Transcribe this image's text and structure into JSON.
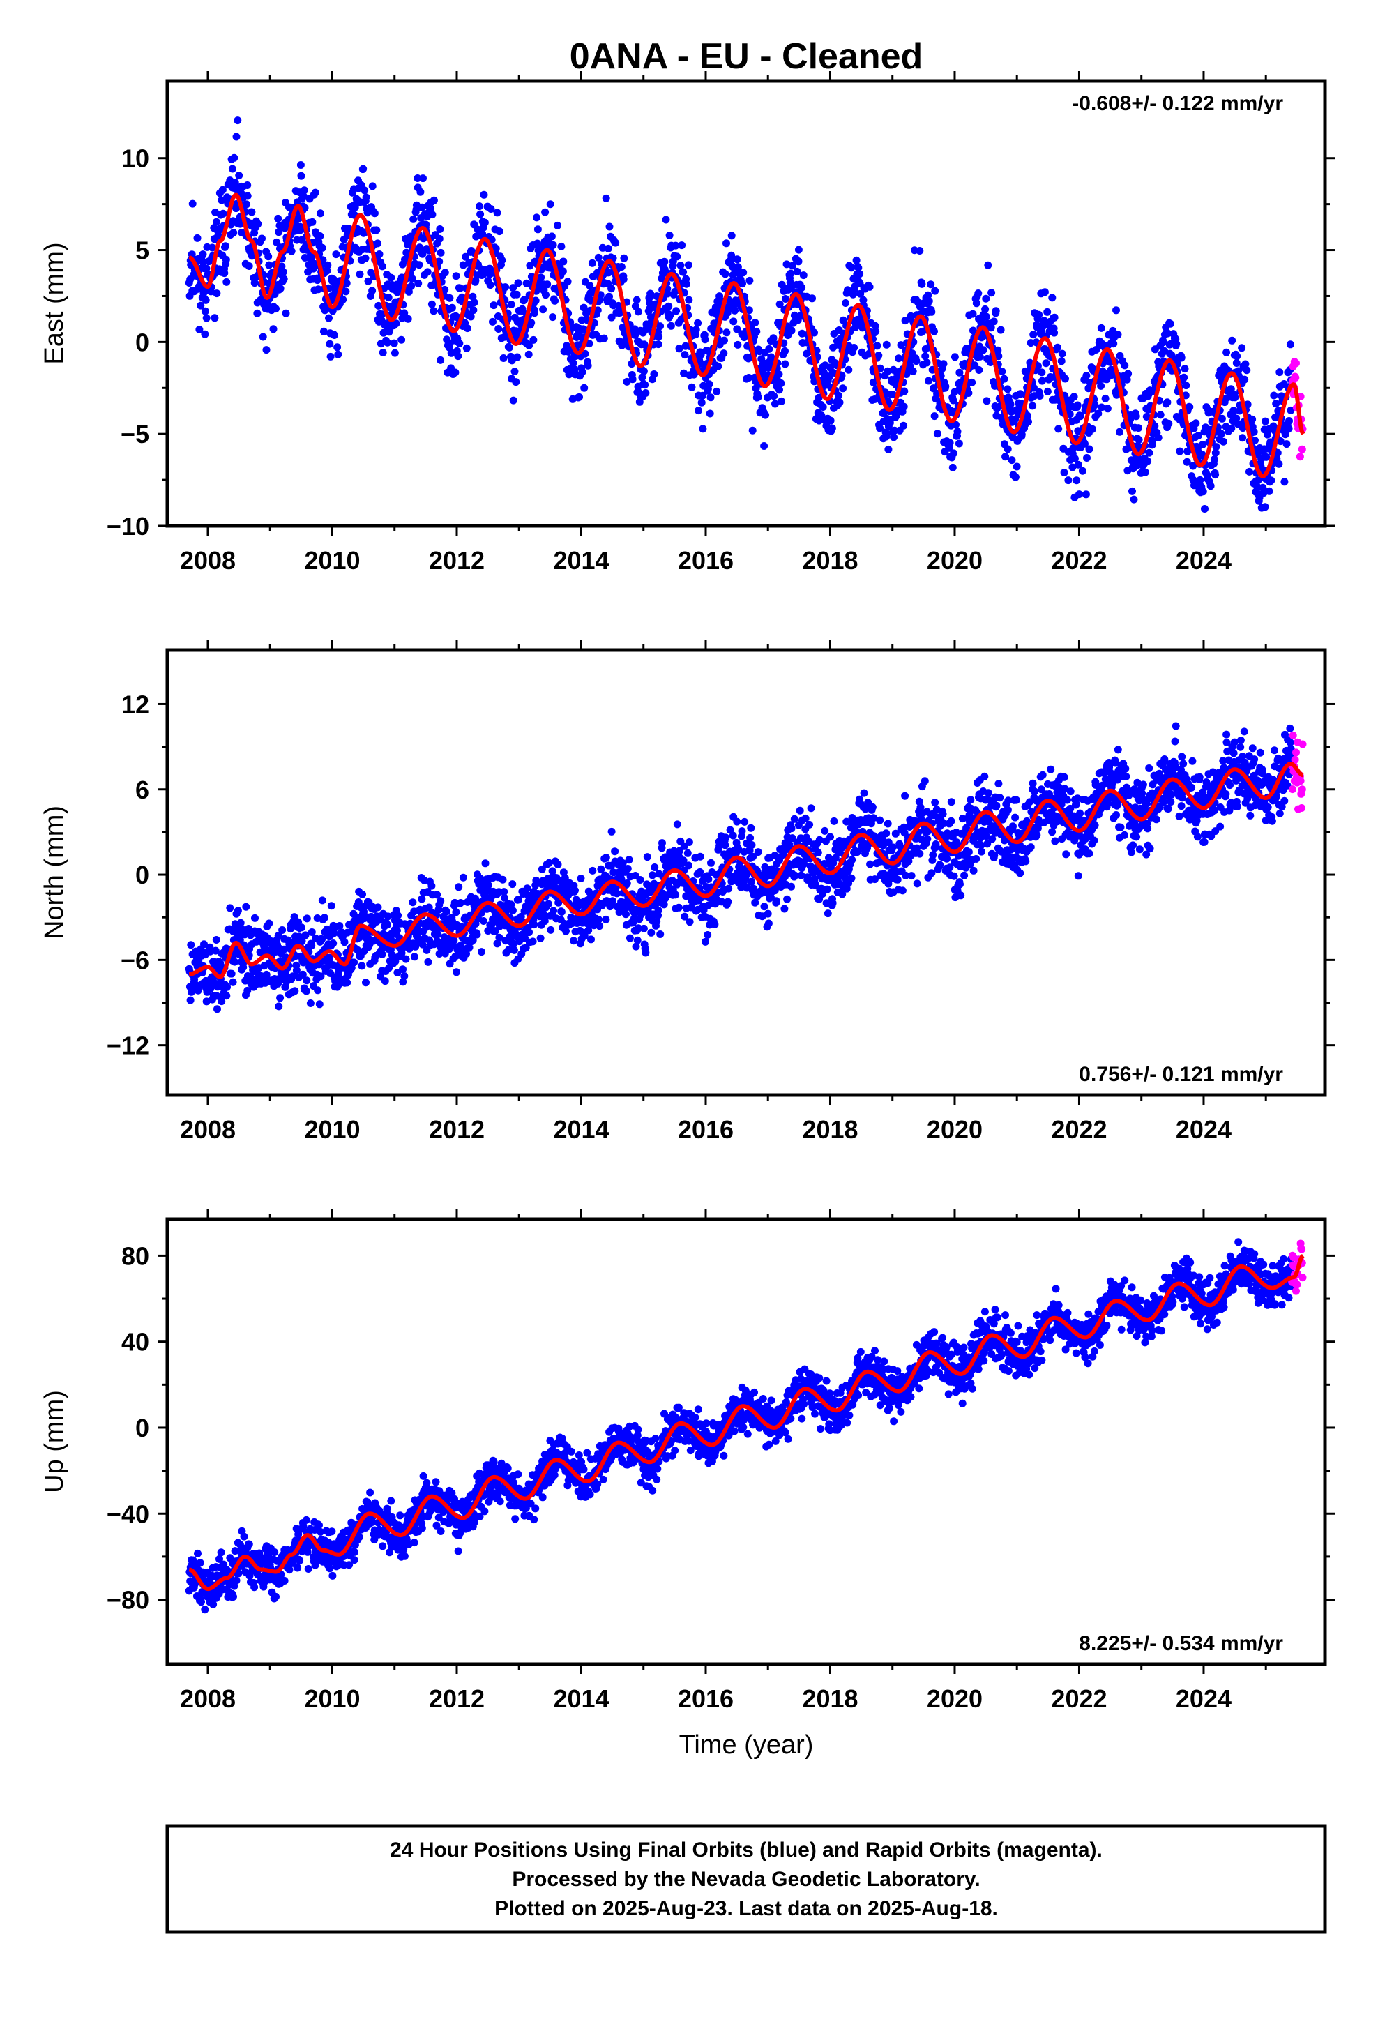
{
  "title": "0ANA  - EU - Cleaned",
  "colors": {
    "final_orbits": "#0000ff",
    "rapid_orbits": "#ff00ff",
    "model_fit": "#ff0000",
    "frame": "#000000"
  },
  "chart_data": [
    {
      "type": "scatter",
      "component": "East",
      "ylabel": "East (mm)",
      "rate_text": "-0.608+/- 0.122 mm/yr",
      "rate_mm_per_yr": -0.608,
      "rate_sigma_mm_per_yr": 0.122,
      "xlim": [
        2007.35,
        2025.95
      ],
      "ylim": [
        -10,
        14.2
      ],
      "yticks": [
        10,
        5,
        0,
        -5,
        -10
      ],
      "ytick_labels": [
        "10",
        "5",
        "0",
        "−5",
        "−10"
      ],
      "xticks": [
        2008,
        2010,
        2012,
        2014,
        2016,
        2018,
        2020,
        2022,
        2024
      ],
      "grid": false,
      "model": {
        "description_shown": "red fitted trend + annual cycle",
        "samples_x": [
          2007.7,
          2008.0,
          2008.2,
          2008.45,
          2008.7,
          2008.95,
          2009.2,
          2009.45,
          2009.7,
          2010.0,
          2010.45,
          2010.95,
          2011.45,
          2011.95,
          2012.45,
          2012.95,
          2013.45,
          2013.95,
          2014.45,
          2014.95,
          2015.45,
          2015.95,
          2016.45,
          2016.95,
          2017.45,
          2017.95,
          2018.45,
          2018.95,
          2019.45,
          2019.95,
          2020.45,
          2020.95,
          2021.45,
          2021.95,
          2022.45,
          2022.95,
          2023.45,
          2023.95,
          2024.45,
          2024.95,
          2025.45,
          2025.6
        ],
        "samples_y": [
          4.6,
          3.0,
          5.5,
          8.0,
          5.5,
          2.4,
          4.9,
          7.4,
          4.9,
          1.9,
          6.9,
          1.2,
          6.2,
          0.6,
          5.6,
          -0.1,
          5.0,
          -0.6,
          4.4,
          -1.3,
          3.7,
          -1.8,
          3.2,
          -2.4,
          2.6,
          -3.1,
          2.0,
          -3.7,
          1.4,
          -4.3,
          0.8,
          -4.9,
          0.2,
          -5.5,
          -0.4,
          -6.1,
          -1.0,
          -6.7,
          -1.7,
          -7.3,
          -2.3,
          -5.0
        ]
      },
      "scatter_seed": 11,
      "scatter_noise_mm": 1.9,
      "daily_positions_shown": "dense blue daily solutions (~6000 days) scattered about the red model; magenta rapid-orbit points at the end"
    },
    {
      "type": "scatter",
      "component": "North",
      "ylabel": "North (mm)",
      "rate_text": "0.756+/- 0.121 mm/yr",
      "rate_mm_per_yr": 0.756,
      "rate_sigma_mm_per_yr": 0.121,
      "xlim": [
        2007.35,
        2025.95
      ],
      "ylim": [
        -15.5,
        15.8
      ],
      "yticks": [
        12,
        6,
        0,
        -6,
        -12
      ],
      "ytick_labels": [
        "12",
        "6",
        "0",
        "−6",
        "−12"
      ],
      "xticks": [
        2008,
        2010,
        2012,
        2014,
        2016,
        2018,
        2020,
        2022,
        2024
      ],
      "grid": false,
      "model": {
        "description_shown": "red fitted trend + annual cycle",
        "samples_x": [
          2007.7,
          2008.0,
          2008.2,
          2008.45,
          2008.7,
          2008.95,
          2009.2,
          2009.45,
          2009.7,
          2009.95,
          2010.2,
          2010.45,
          2011.0,
          2011.5,
          2012.0,
          2012.5,
          2013.0,
          2013.5,
          2014.0,
          2014.5,
          2015.0,
          2015.5,
          2016.0,
          2016.5,
          2017.0,
          2017.5,
          2018.0,
          2018.5,
          2019.0,
          2019.5,
          2020.0,
          2020.5,
          2021.0,
          2021.5,
          2022.0,
          2022.5,
          2023.0,
          2023.5,
          2024.0,
          2024.5,
          2025.0,
          2025.4,
          2025.6
        ],
        "samples_y": [
          -7.0,
          -6.5,
          -7.2,
          -4.8,
          -6.3,
          -5.7,
          -6.6,
          -5.0,
          -6.1,
          -5.4,
          -6.3,
          -3.6,
          -5.0,
          -2.8,
          -4.3,
          -2.0,
          -3.6,
          -1.2,
          -2.8,
          -0.5,
          -2.2,
          0.3,
          -1.5,
          1.2,
          -0.8,
          2.0,
          0.1,
          2.8,
          0.8,
          3.6,
          1.6,
          4.4,
          2.3,
          5.2,
          3.1,
          5.9,
          3.9,
          6.7,
          4.7,
          7.4,
          5.4,
          7.8,
          7.0
        ]
      },
      "scatter_seed": 23,
      "scatter_noise_mm": 1.8,
      "daily_positions_shown": "dense blue daily solutions scattered about the red model; magenta rapid-orbit points at the end"
    },
    {
      "type": "scatter",
      "component": "Up",
      "ylabel": "Up (mm)",
      "rate_text": "8.225+/- 0.534 mm/yr",
      "rate_mm_per_yr": 8.225,
      "rate_sigma_mm_per_yr": 0.534,
      "xlim": [
        2007.35,
        2025.95
      ],
      "ylim": [
        -110,
        97
      ],
      "yticks": [
        80,
        40,
        0,
        -40,
        -80
      ],
      "ytick_labels": [
        "80",
        "40",
        "0",
        "−40",
        "−80"
      ],
      "xticks": [
        2008,
        2010,
        2012,
        2014,
        2016,
        2018,
        2020,
        2022,
        2024
      ],
      "xlabel": "Time (year)",
      "grid": false,
      "model": {
        "description_shown": "red fitted trend + annual cycle",
        "samples_x": [
          2007.7,
          2008.0,
          2008.3,
          2008.6,
          2008.85,
          2009.1,
          2009.35,
          2009.6,
          2009.85,
          2010.1,
          2010.6,
          2011.1,
          2011.6,
          2012.1,
          2012.6,
          2013.1,
          2013.6,
          2014.1,
          2014.6,
          2015.1,
          2015.6,
          2016.1,
          2016.6,
          2017.1,
          2017.6,
          2018.1,
          2018.6,
          2019.1,
          2019.6,
          2020.1,
          2020.6,
          2021.1,
          2021.6,
          2022.1,
          2022.6,
          2023.1,
          2023.6,
          2024.1,
          2024.6,
          2025.1,
          2025.45,
          2025.6
        ],
        "samples_y": [
          -66,
          -75,
          -70,
          -60,
          -66,
          -67,
          -59,
          -50,
          -57,
          -59,
          -40,
          -50,
          -32,
          -42,
          -23,
          -33,
          -15,
          -25,
          -7,
          -16,
          2,
          -8,
          10,
          0,
          18,
          8,
          26,
          17,
          35,
          25,
          43,
          33,
          51,
          42,
          59,
          50,
          67,
          57,
          75,
          65,
          70,
          80
        ]
      },
      "scatter_seed": 37,
      "scatter_noise_mm": 7.0,
      "daily_positions_shown": "dense blue daily solutions scattered about the red model; magenta rapid-orbit points at the end"
    }
  ],
  "footer": {
    "line1": "24 Hour Positions Using Final Orbits (blue) and Rapid Orbits (magenta).",
    "line2": "Processed by the Nevada Geodetic Laboratory.",
    "line3": "Plotted on 2025-Aug-23. Last data on 2025-Aug-18."
  }
}
